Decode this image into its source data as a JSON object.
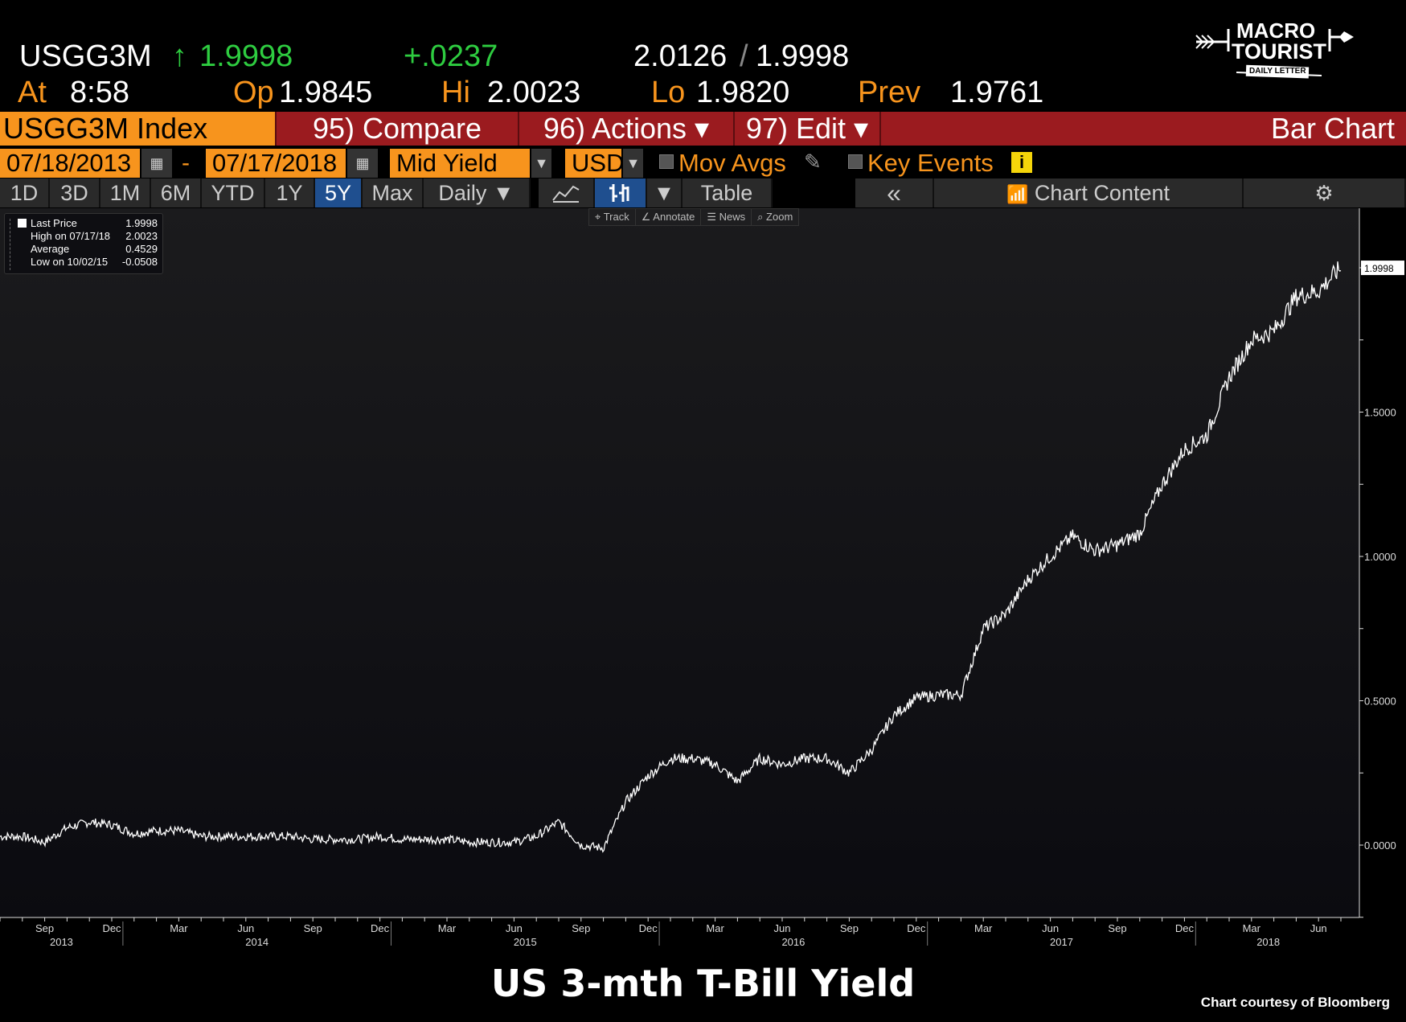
{
  "header": {
    "ticker": "USGG3M",
    "arrow": "↑",
    "last": "1.9998",
    "change": "+.0237",
    "bid": "2.0126",
    "sep": "/",
    "ask": "1.9998",
    "at_label": "At",
    "time": "8:58",
    "op_label": "Op",
    "op": "1.9845",
    "hi_label": "Hi",
    "hi": "2.0023",
    "lo_label": "Lo",
    "lo": "1.9820",
    "prev_label": "Prev",
    "prev": "1.9761"
  },
  "logo": {
    "line1": "MACRO",
    "line2": "TOURIST",
    "line3": "DAILY LETTER"
  },
  "menubar": {
    "security": "USGG3M Index",
    "compare": "95) Compare",
    "actions": "96) Actions ▾",
    "edit": "97) Edit ▾",
    "chart_type": "Bar Chart"
  },
  "controls": {
    "start_date": "07/18/2013",
    "dash": "-",
    "end_date": "07/17/2018",
    "field": "Mid Yield",
    "currency": "USD",
    "mov_avgs": "Mov Avgs",
    "key_events": "Key Events"
  },
  "ranges": [
    "1D",
    "3D",
    "1M",
    "6M",
    "YTD",
    "1Y",
    "5Y",
    "Max",
    "Daily ▼"
  ],
  "selected_range": "5Y",
  "toolbar": {
    "table": "Table",
    "collapse": "«",
    "chart_content": "Chart Content",
    "dropdown": "▼"
  },
  "chart_tools": [
    "Track",
    "Annotate",
    "News",
    "Zoom"
  ],
  "legend": [
    {
      "label": "Last Price",
      "value": "1.9998"
    },
    {
      "label": "High on 07/17/18",
      "value": "2.0023"
    },
    {
      "label": "Average",
      "value": "0.4529"
    },
    {
      "label": "Low on 10/02/15",
      "value": "-0.0508"
    }
  ],
  "footer": {
    "title": "US 3-mth T-Bill Yield",
    "credit": "Chart courtesy of Bloomberg"
  },
  "colors": {
    "accent": "#f7941d",
    "menubar": "#9b1b1f",
    "selected": "#1f4f8f",
    "up": "#2ecc40"
  },
  "chart_data": {
    "type": "bar",
    "title": "US 3-mth T-Bill Yield",
    "xlabel": "",
    "ylabel": "",
    "x_start": "2013-07-18",
    "x_end": "2018-07-17",
    "frequency": "monthly approx",
    "ylim": [
      -0.25,
      2.2
    ],
    "yticks": [
      "0.0000",
      "0.5000",
      "1.0000",
      "1.5000"
    ],
    "ytick_values": [
      0,
      0.5,
      1,
      1.5
    ],
    "last_price_tag": "1.9998",
    "last_value": 1.9998,
    "xticks": [
      {
        "label": "Sep",
        "m": 2
      },
      {
        "label": "Dec",
        "m": 5
      },
      {
        "label": "Mar",
        "m": 8
      },
      {
        "label": "Jun",
        "m": 11
      },
      {
        "label": "Sep",
        "m": 14
      },
      {
        "label": "Dec",
        "m": 17
      },
      {
        "label": "Mar",
        "m": 20
      },
      {
        "label": "Jun",
        "m": 23
      },
      {
        "label": "Sep",
        "m": 26
      },
      {
        "label": "Dec",
        "m": 29
      },
      {
        "label": "Mar",
        "m": 32
      },
      {
        "label": "Jun",
        "m": 35
      },
      {
        "label": "Sep",
        "m": 38
      },
      {
        "label": "Dec",
        "m": 41
      },
      {
        "label": "Mar",
        "m": 44
      },
      {
        "label": "Jun",
        "m": 47
      },
      {
        "label": "Sep",
        "m": 50
      },
      {
        "label": "Dec",
        "m": 53
      },
      {
        "label": "Mar",
        "m": 56
      },
      {
        "label": "Jun",
        "m": 59
      }
    ],
    "years": [
      {
        "label": "2013",
        "from": 0,
        "to": 5.5
      },
      {
        "label": "2014",
        "from": 5.5,
        "to": 17.5
      },
      {
        "label": "2015",
        "from": 17.5,
        "to": 29.5
      },
      {
        "label": "2016",
        "from": 29.5,
        "to": 41.5
      },
      {
        "label": "2017",
        "from": 41.5,
        "to": 53.5
      },
      {
        "label": "2018",
        "from": 53.5,
        "to": 60
      }
    ],
    "values": [
      0.03,
      0.03,
      0.01,
      0.06,
      0.08,
      0.07,
      0.04,
      0.05,
      0.05,
      0.03,
      0.03,
      0.03,
      0.03,
      0.03,
      0.02,
      0.02,
      0.02,
      0.03,
      0.02,
      0.02,
      0.02,
      0.01,
      0.01,
      0.01,
      0.03,
      0.08,
      0.0,
      -0.01,
      0.15,
      0.24,
      0.3,
      0.3,
      0.28,
      0.22,
      0.3,
      0.28,
      0.3,
      0.3,
      0.25,
      0.33,
      0.45,
      0.51,
      0.52,
      0.52,
      0.75,
      0.8,
      0.92,
      1.0,
      1.07,
      1.02,
      1.04,
      1.08,
      1.25,
      1.37,
      1.42,
      1.62,
      1.75,
      1.78,
      1.9,
      1.92,
      2.0
    ]
  }
}
